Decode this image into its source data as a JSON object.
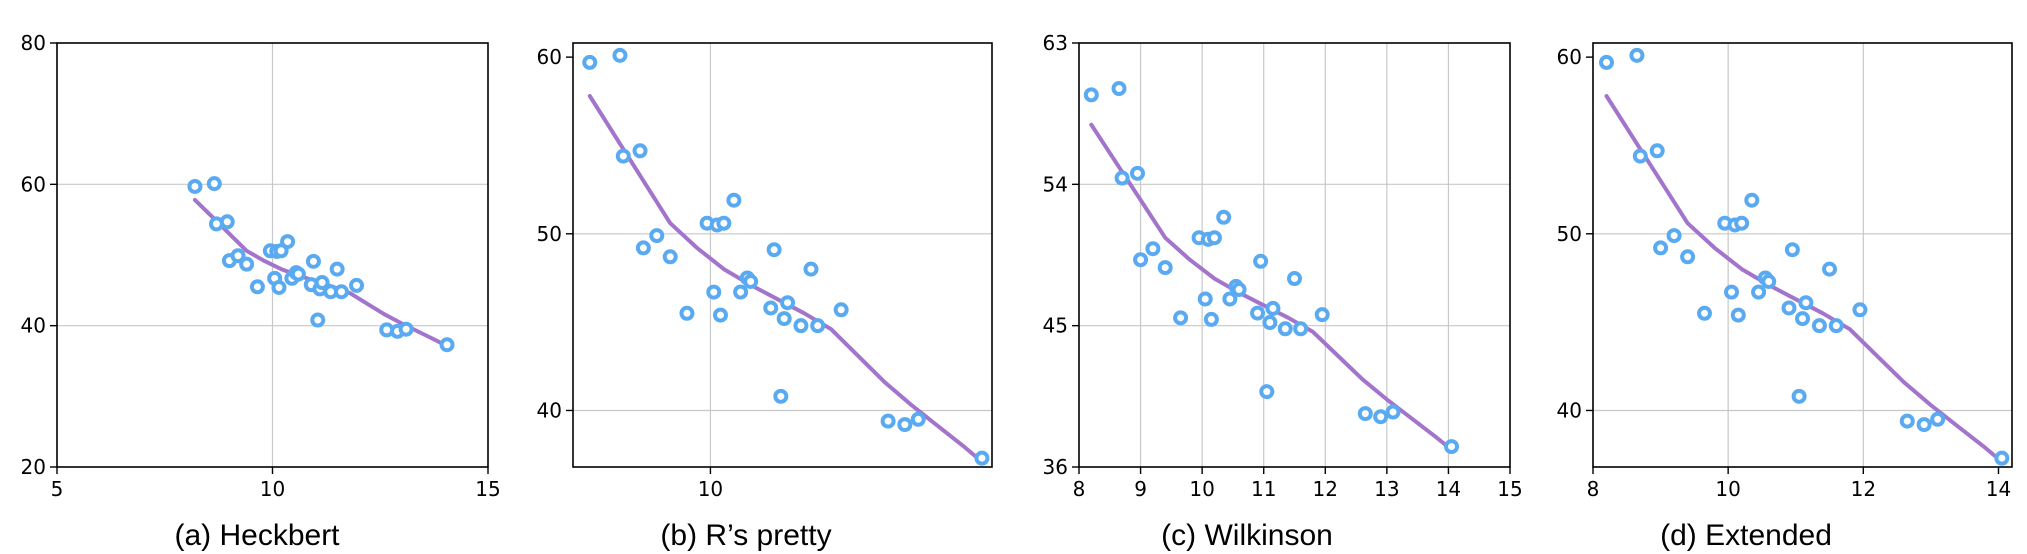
{
  "colors": {
    "points": "#5aaaf2",
    "trend": "#a374cc"
  },
  "dataset": {
    "x": [
      8.2,
      8.65,
      8.7,
      8.95,
      9.0,
      9.2,
      9.4,
      9.65,
      9.95,
      10.05,
      10.1,
      10.15,
      10.2,
      10.35,
      10.45,
      10.55,
      10.6,
      10.9,
      10.95,
      11.05,
      11.1,
      11.15,
      11.35,
      11.5,
      11.6,
      11.95,
      12.65,
      12.9,
      13.1,
      14.05
    ],
    "y": [
      59.7,
      60.1,
      54.4,
      54.7,
      49.2,
      49.9,
      48.7,
      45.5,
      50.6,
      46.7,
      50.5,
      45.4,
      50.6,
      51.9,
      46.7,
      47.5,
      47.3,
      45.8,
      49.1,
      40.8,
      45.2,
      46.1,
      44.8,
      48.0,
      44.8,
      45.7,
      39.4,
      39.2,
      39.5,
      37.3
    ]
  },
  "trend_line": {
    "x": [
      8.2,
      8.6,
      9.0,
      9.4,
      9.8,
      10.2,
      10.6,
      11.0,
      11.4,
      11.8,
      12.2,
      12.6,
      13.0,
      13.4,
      13.8,
      14.05
    ],
    "y": [
      57.8,
      55.4,
      53.0,
      50.6,
      49.2,
      48.0,
      47.1,
      46.3,
      45.5,
      44.6,
      43.1,
      41.6,
      40.3,
      39.1,
      37.9,
      37.1
    ]
  },
  "chart_data": [
    {
      "type": "scatter",
      "title": "(a) Heckbert",
      "xlim": [
        5,
        15
      ],
      "ylim": [
        20,
        80
      ],
      "xticks": [
        5,
        10,
        15
      ],
      "yticks": [
        20,
        40,
        60,
        80
      ],
      "xtick_labels": [
        "5",
        "10",
        "15"
      ],
      "ytick_labels": [
        "20",
        "40",
        "60",
        "80"
      ],
      "xgrid": [
        10
      ],
      "ygrid": [
        40,
        60
      ],
      "grid": true
    },
    {
      "type": "scatter",
      "title": "(b) R’s pretty",
      "xlim": [
        7.95,
        14.2
      ],
      "ylim": [
        36.8,
        60.8
      ],
      "xticks": [
        10
      ],
      "yticks": [
        40,
        50,
        60
      ],
      "xtick_labels": [
        "10"
      ],
      "ytick_labels": [
        "40",
        "50",
        "60"
      ],
      "xgrid": [
        10
      ],
      "ygrid": [
        40,
        50
      ],
      "grid": true
    },
    {
      "type": "scatter",
      "title": "(c) Wilkinson",
      "xlim": [
        8,
        15
      ],
      "ylim": [
        36,
        63
      ],
      "xticks": [
        8,
        9,
        10,
        11,
        12,
        13,
        14,
        15
      ],
      "yticks": [
        36,
        45,
        54,
        63
      ],
      "xtick_labels": [
        "8",
        "9",
        "10",
        "11",
        "12",
        "13",
        "14",
        "15"
      ],
      "ytick_labels": [
        "36",
        "45",
        "54",
        "63"
      ],
      "xgrid": [
        9,
        10,
        11,
        12,
        13,
        14
      ],
      "ygrid": [
        45,
        54
      ],
      "grid": true
    },
    {
      "type": "scatter",
      "title": "(d) Extended",
      "xlim": [
        8,
        14.2
      ],
      "ylim": [
        36.8,
        60.8
      ],
      "xticks": [
        8,
        10,
        12,
        14
      ],
      "yticks": [
        40,
        50,
        60
      ],
      "xtick_labels": [
        "8",
        "10",
        "12",
        "14"
      ],
      "ytick_labels": [
        "40",
        "50",
        "60"
      ],
      "xgrid": [
        10,
        12
      ],
      "ygrid": [
        40,
        50
      ],
      "grid": true
    }
  ]
}
